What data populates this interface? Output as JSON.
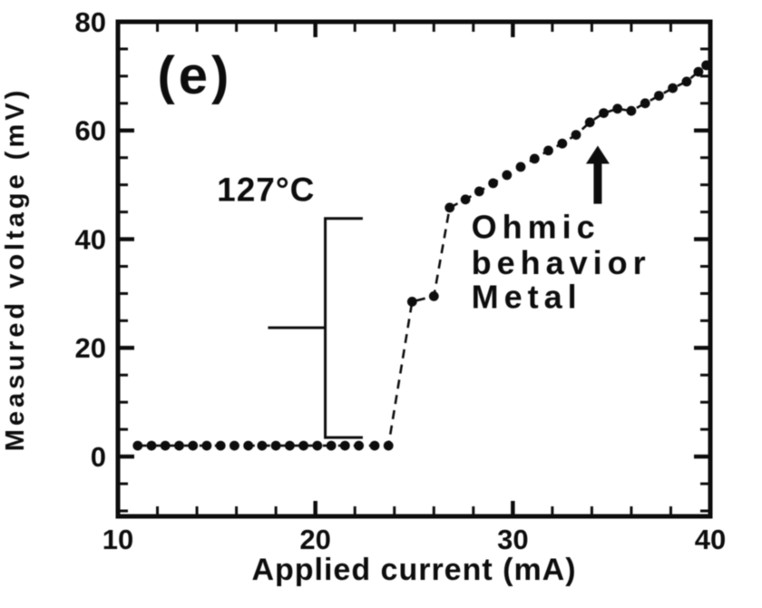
{
  "colors": {
    "ink": "#0d0d0d",
    "background": "#ffffff"
  },
  "chart_data": {
    "type": "scatter",
    "title": "",
    "xlabel": "Applied current (mA)",
    "ylabel": "Measured voltage (mV)",
    "xlim": [
      10,
      40
    ],
    "ylim": [
      -11,
      80
    ],
    "x_major_ticks": [
      10,
      20,
      30,
      40
    ],
    "x_minor_step": 2,
    "y_major_ticks": [
      0,
      20,
      40,
      60,
      80
    ],
    "y_minor_step": 5,
    "grid": false,
    "legend": "none",
    "line_style": "dashed",
    "marker": "filled-circle",
    "series": [
      {
        "name": "measured-voltage-vs-current",
        "points": [
          [
            11.0,
            2
          ],
          [
            11.7,
            2
          ],
          [
            12.4,
            2
          ],
          [
            13.1,
            2
          ],
          [
            13.8,
            2
          ],
          [
            14.5,
            2
          ],
          [
            15.2,
            2
          ],
          [
            15.9,
            2
          ],
          [
            16.6,
            2
          ],
          [
            17.3,
            2
          ],
          [
            18.0,
            2
          ],
          [
            18.7,
            2
          ],
          [
            19.4,
            2
          ],
          [
            20.1,
            2
          ],
          [
            20.8,
            2
          ],
          [
            21.5,
            2
          ],
          [
            22.2,
            2
          ],
          [
            23.0,
            2
          ],
          [
            23.7,
            2
          ],
          [
            24.9,
            28.5
          ],
          [
            26.0,
            29.5
          ],
          [
            26.8,
            45.8
          ],
          [
            27.6,
            47.3
          ],
          [
            28.3,
            48.8
          ],
          [
            29.0,
            50.3
          ],
          [
            29.7,
            51.8
          ],
          [
            30.4,
            53.3
          ],
          [
            31.1,
            54.8
          ],
          [
            31.8,
            56.3
          ],
          [
            32.5,
            57.6
          ],
          [
            33.2,
            59.2
          ],
          [
            33.9,
            61.5
          ],
          [
            34.6,
            63.2
          ],
          [
            35.3,
            64.0
          ],
          [
            36.0,
            63.6
          ],
          [
            36.7,
            65.0
          ],
          [
            37.4,
            66.4
          ],
          [
            38.1,
            67.8
          ],
          [
            38.8,
            69.0
          ],
          [
            39.4,
            70.8
          ],
          [
            39.8,
            72.0
          ]
        ]
      }
    ],
    "annotations": [
      {
        "type": "text",
        "name": "panel-label",
        "text": "(e)",
        "x": 13.9,
        "y": 70.2,
        "size": 58,
        "anchor": "middle",
        "spacing": 4
      },
      {
        "type": "text",
        "name": "temperature-label",
        "text": "127°C",
        "x": 17.5,
        "y": 49.2,
        "size": 37,
        "anchor": "middle",
        "spacing": 1
      },
      {
        "type": "text",
        "name": "ohmic-label-line1",
        "text": "Ohmic",
        "x": 27.9,
        "y": 42.3,
        "size": 36,
        "anchor": "start",
        "spacing": 6
      },
      {
        "type": "text",
        "name": "ohmic-label-line2",
        "text": "behavior",
        "x": 27.9,
        "y": 35.7,
        "size": 36,
        "anchor": "start",
        "spacing": 6
      },
      {
        "type": "text",
        "name": "ohmic-label-line3",
        "text": "Metal",
        "x": 27.9,
        "y": 29.4,
        "size": 36,
        "anchor": "start",
        "spacing": 6
      },
      {
        "type": "arrow",
        "name": "ohmic-arrow",
        "x": 34.3,
        "y_from": 46.5,
        "y_to": 57.2
      },
      {
        "type": "bracket",
        "name": "transition-bracket",
        "x": 20.5,
        "v_top": 43.8,
        "v_bottom": 3.5,
        "v_mid": 23.7,
        "arm_right_end": 22.4,
        "arm_left_end": 17.6
      }
    ]
  }
}
